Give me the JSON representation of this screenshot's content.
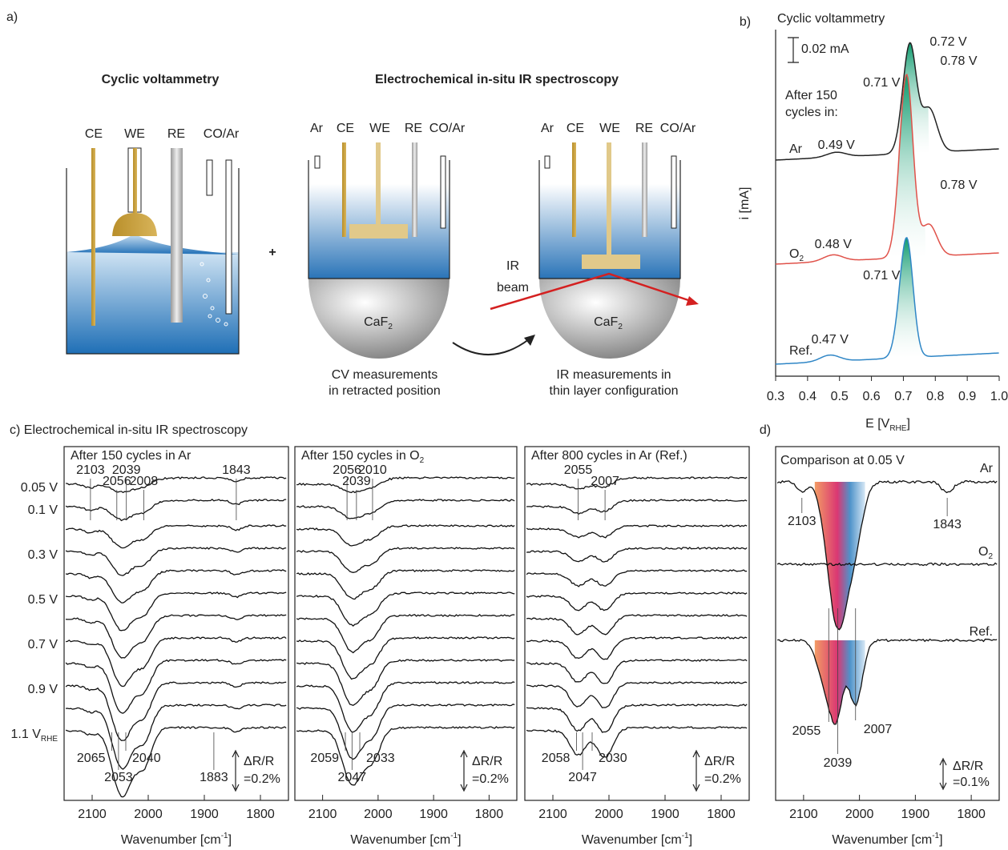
{
  "a": {
    "label": "a)",
    "title_cv": "Cyclic voltammetry",
    "title_ir": "Electrochemical in-situ IR spectroscopy",
    "plus": "+",
    "cell1": [
      "CE",
      "WE",
      "RE",
      "CO/Ar"
    ],
    "cell2": [
      "Ar",
      "CE",
      "WE",
      "RE",
      "CO/Ar"
    ],
    "cell3": [
      "Ar",
      "CE",
      "WE",
      "RE",
      "CO/Ar"
    ],
    "window": "CaF",
    "window_sub": "2",
    "beam": [
      "IR",
      "beam"
    ],
    "caption2": [
      "CV measurements",
      "in retracted position"
    ],
    "caption3": [
      "IR measurements in",
      "thin layer configuration"
    ]
  },
  "b": {
    "label": "b)",
    "title": "Cyclic voltammetry",
    "scale_bar": "0.02 mA",
    "y_label": "i [mA]",
    "x_label": "E [V",
    "x_label_sub": "RHE",
    "x_label_end": "]",
    "note": [
      "After 150",
      "cycles in:"
    ],
    "xlim": [
      0.3,
      1.0
    ],
    "xticks": [
      0.3,
      0.4,
      0.5,
      0.6,
      0.7,
      0.8,
      0.9,
      {
        "value": 1.0,
        "label": "1.0"
      }
    ],
    "traces": [
      {
        "name": "Ar",
        "color": "#222222",
        "main": {
          "value": 0.72,
          "label": "0.72 V"
        },
        "shoulder": {
          "value": 0.78,
          "label": "0.78 V"
        },
        "small": {
          "value": 0.49,
          "label": "0.49 V"
        }
      },
      {
        "name": "O",
        "name_sub": "2",
        "color": "#e0524a",
        "main": {
          "value": 0.71,
          "label": "0.71 V"
        },
        "shoulder": {
          "value": 0.78,
          "label": "0.78 V"
        },
        "small": {
          "value": 0.48,
          "label": "0.48 V"
        }
      },
      {
        "name": "Ref.",
        "color": "#2f86c6",
        "main": {
          "value": 0.71,
          "label": "0.71 V"
        },
        "small": {
          "value": 0.47,
          "label": "0.47 V"
        }
      }
    ]
  },
  "c": {
    "heading": "c) Electrochemical in-situ IR spectroscopy",
    "potentials": [
      "0.05 V",
      "0.1 V",
      null,
      "0.3 V",
      null,
      "0.5 V",
      null,
      "0.7 V",
      null,
      "0.9 V",
      null,
      "1.1 V"
    ],
    "potential_sub": "RHE",
    "xlim": [
      2150,
      1750
    ],
    "xticks": [
      2100,
      2000,
      1900,
      1800
    ],
    "x_label": "Wavenumber [cm",
    "x_label_sup": "-1",
    "x_label_end": "]",
    "spectra": [
      {
        "title": "After 150 cycles in Ar",
        "top_peaks": [
          2103,
          2056,
          2039,
          2008,
          1843
        ],
        "bottom_peaks": [
          2065,
          2053,
          2040,
          1883
        ],
        "scale": [
          "ΔR/R",
          "=0.2%"
        ]
      },
      {
        "title": "After 150 cycles in O",
        "title_sub": "2",
        "top_peaks": [
          2056,
          2039,
          2010
        ],
        "bottom_peaks": [
          2059,
          2047,
          2033
        ],
        "scale": [
          "ΔR/R",
          "=0.2%"
        ]
      },
      {
        "title": "After 800 cycles in Ar (Ref.)",
        "top_peaks": [
          2055,
          2007
        ],
        "bottom_peaks": [
          2058,
          2047,
          2030
        ],
        "scale": [
          "ΔR/R",
          "=0.2%"
        ]
      }
    ]
  },
  "d": {
    "label": "d)",
    "title": "Comparison at 0.05 V",
    "traces": [
      {
        "name": "Ar"
      },
      {
        "name": "O",
        "name_sub": "2"
      },
      {
        "name": "Ref."
      }
    ],
    "top_peaks": [
      2103,
      1843
    ],
    "bottom_peaks": [
      2055,
      2039,
      2007
    ],
    "xlim": [
      2150,
      1750
    ],
    "xticks": [
      2100,
      2000,
      1900,
      1800
    ],
    "x_label": "Wavenumber [cm",
    "x_label_sup": "-1",
    "x_label_end": "]",
    "scale": [
      "ΔR/R",
      "=0.1%"
    ]
  }
}
